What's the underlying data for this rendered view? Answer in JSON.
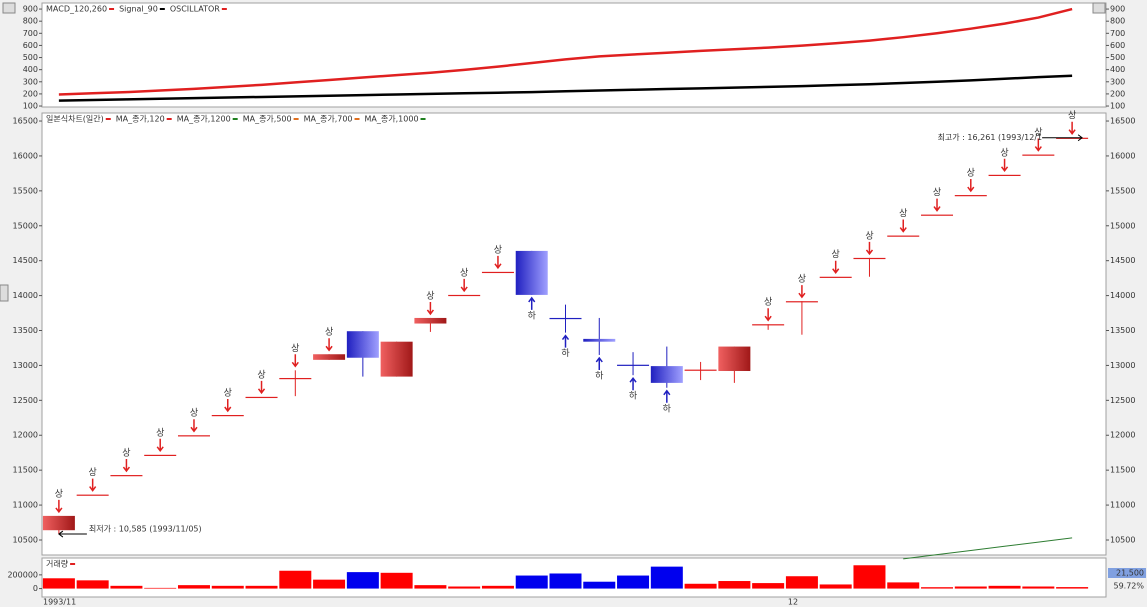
{
  "chart_data": [
    {
      "type": "line",
      "legend": [
        "MACD_120,260",
        "Signal_90",
        "OSCILLATOR"
      ],
      "legend_colors": [
        "#e02020",
        "#000000",
        "#e02020"
      ],
      "series": [
        {
          "name": "MACD_120,260",
          "color": "#e02020",
          "values": [
            195,
            205,
            215,
            228,
            242,
            258,
            275,
            295,
            315,
            335,
            355,
            375,
            398,
            425,
            455,
            485,
            510,
            525,
            540,
            555,
            568,
            582,
            598,
            618,
            640,
            668,
            700,
            738,
            780,
            830,
            900
          ]
        },
        {
          "name": "Signal_90",
          "color": "#000000",
          "values": [
            145,
            150,
            155,
            160,
            165,
            170,
            175,
            180,
            185,
            190,
            195,
            200,
            205,
            210,
            215,
            222,
            228,
            234,
            240,
            246,
            252,
            258,
            264,
            272,
            280,
            290,
            300,
            312,
            325,
            338,
            350
          ]
        }
      ],
      "ylim": [
        92,
        950
      ],
      "yticks": [
        100,
        200,
        300,
        400,
        500,
        600,
        700,
        800,
        900
      ]
    },
    {
      "type": "candlestick",
      "legend": [
        "일본식차트(일간)",
        "MA_종가,120",
        "MA_종가,1200",
        "MA_종가,500",
        "MA_종가,700",
        "MA_종가,1000"
      ],
      "legend_colors": [
        "#e02020",
        "#e02020",
        "#208020",
        "#e07020",
        "#e07020",
        "#208020"
      ],
      "open": [
        10640,
        11150,
        11430,
        11720,
        12000,
        12290,
        12550,
        12820,
        13080,
        13490,
        12840,
        13600,
        14010,
        14340,
        14640,
        13680,
        13380,
        13010,
        12990,
        12940,
        12920,
        13590,
        13920,
        14270,
        14540,
        14860,
        15160,
        15440,
        15730,
        16020,
        16261
      ],
      "high": [
        10845,
        11150,
        11430,
        11720,
        12000,
        12290,
        12550,
        12930,
        13160,
        13490,
        13340,
        13680,
        14010,
        14340,
        14640,
        13870,
        13680,
        13190,
        13270,
        13050,
        13270,
        13590,
        13920,
        14270,
        14540,
        14860,
        15160,
        15440,
        15730,
        16020,
        16261
      ],
      "low": [
        10585,
        11150,
        11430,
        11720,
        12000,
        12290,
        12550,
        12560,
        13080,
        12840,
        12840,
        13480,
        14010,
        14340,
        14010,
        13470,
        13150,
        12860,
        12680,
        12790,
        12750,
        13510,
        13440,
        14270,
        14270,
        14860,
        15160,
        15440,
        15730,
        16020,
        16261
      ],
      "close": [
        10845,
        11150,
        11430,
        11720,
        12000,
        12290,
        12550,
        12820,
        13160,
        13110,
        13340,
        13680,
        14010,
        14340,
        14010,
        13680,
        13340,
        13010,
        12750,
        12940,
        13270,
        13590,
        13920,
        14270,
        14540,
        14860,
        15160,
        15440,
        15730,
        16020,
        16261
      ],
      "signals": [
        "상",
        "상",
        "상",
        "상",
        "상",
        "상",
        "상",
        "상",
        "상",
        null,
        null,
        "상",
        "상",
        "상",
        "하",
        "하",
        "하",
        "하",
        "하",
        null,
        null,
        "상",
        "상",
        "상",
        "상",
        "상",
        "상",
        "상",
        "상",
        "상",
        "상"
      ],
      "ma": {
        "name": "MA_종가,1200",
        "color": "#2e7d32",
        "values": [
          null,
          null,
          null,
          null,
          null,
          null,
          null,
          null,
          null,
          null,
          null,
          null,
          null,
          null,
          null,
          null,
          null,
          null,
          null,
          null,
          null,
          null,
          null,
          null,
          null,
          10230,
          10290,
          10350,
          10410,
          10470,
          10530
        ]
      },
      "high_label": "최고가 : 16,261 (1993/12/1",
      "low_label": "최저가 : 10,585 (1993/11/05)",
      "ylim": [
        10285,
        16615
      ],
      "yticks": [
        10500,
        11000,
        11500,
        12000,
        12500,
        13000,
        13500,
        14000,
        14500,
        15000,
        15500,
        16000,
        16500
      ]
    },
    {
      "type": "bar",
      "legend": [
        "거래량"
      ],
      "categories": [
        "1993/11",
        null,
        null,
        null,
        null,
        null,
        null,
        null,
        null,
        null,
        null,
        null,
        null,
        null,
        null,
        null,
        null,
        null,
        null,
        null,
        null,
        null,
        "12",
        null,
        null,
        null,
        null,
        null,
        null,
        null,
        null
      ],
      "values": [
        150000,
        120000,
        40000,
        10000,
        50000,
        40000,
        40000,
        260000,
        130000,
        240000,
        230000,
        50000,
        30000,
        40000,
        190000,
        220000,
        100000,
        190000,
        320000,
        70000,
        110000,
        80000,
        180000,
        60000,
        340000,
        90000,
        20000,
        30000,
        40000,
        30000,
        21500
      ],
      "value_labels": [
        null,
        null,
        null,
        null,
        null,
        null,
        null,
        null,
        null,
        null,
        null,
        null,
        null,
        null,
        null,
        null,
        null,
        null,
        null,
        null,
        null,
        null,
        null,
        null,
        null,
        null,
        null,
        null,
        null,
        null,
        "21,500"
      ],
      "ratio_label": "59.72%",
      "ylim": [
        -123000,
        446000
      ],
      "yticks": [
        0,
        200000
      ]
    }
  ]
}
